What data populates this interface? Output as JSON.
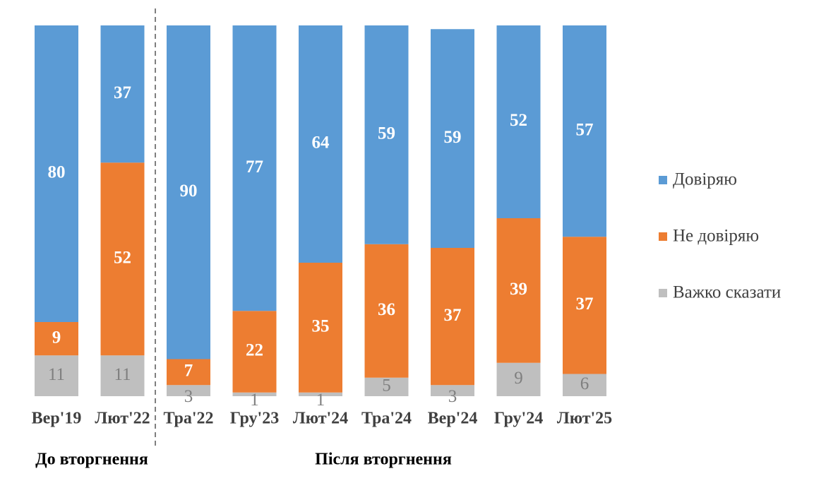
{
  "chart_data": {
    "type": "stacked-bar",
    "categories": [
      "Вер'19",
      "Лют'22",
      "Тра'22",
      "Гру'23",
      "Лют'24",
      "Тра'24",
      "Вер'24",
      "Гру'24",
      "Лют'25"
    ],
    "series": [
      {
        "name": "Важко сказати",
        "color": "#bfbfbf",
        "label_color": "#7f7f7f",
        "values": [
          11,
          11,
          3,
          1,
          1,
          5,
          3,
          9,
          6
        ]
      },
      {
        "name": "Не довіряю",
        "color": "#ed7d31",
        "label_color": "#ffffff",
        "values": [
          9,
          52,
          7,
          22,
          35,
          36,
          37,
          39,
          37
        ]
      },
      {
        "name": "Довіряю",
        "color": "#5b9bd5",
        "label_color": "#ffffff",
        "values": [
          80,
          37,
          90,
          77,
          64,
          59,
          59,
          52,
          57
        ]
      }
    ],
    "ylim": [
      0,
      100
    ],
    "annotations": [
      "До вторгнення",
      "Після вторгнення"
    ]
  }
}
